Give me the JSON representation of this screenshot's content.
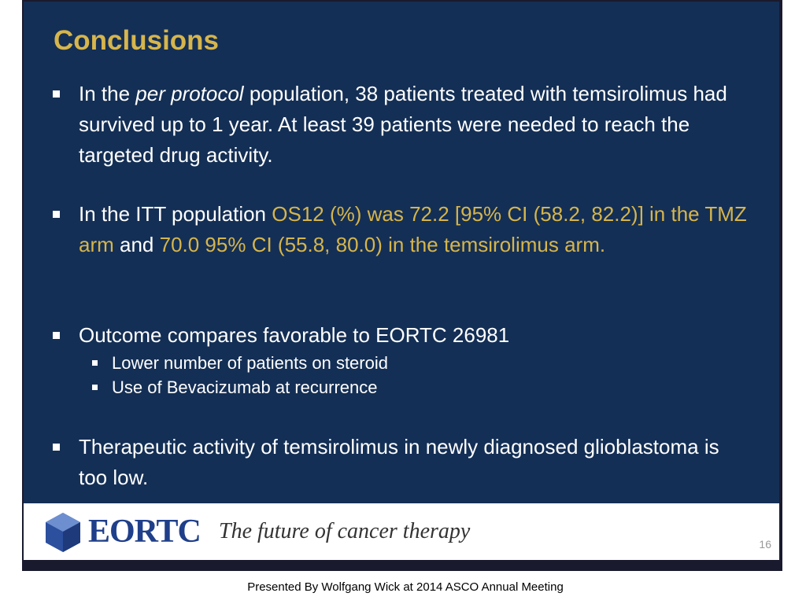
{
  "slide": {
    "title": "Conclusions",
    "bullets": [
      {
        "parts": [
          "In the ",
          "per protocol",
          " population, 38 patients treated with temsirolimus had survived up to 1 year. At least 39 patients were needed to reach the targeted drug activity."
        ]
      },
      {
        "parts": [
          "In the ITT population ",
          "OS12 (%) was 72.2 [95% CI (58.2, 82.2)] in the TMZ arm",
          " and ",
          "70.0 95% CI (55.8, 80.0) in the temsirolimus arm."
        ]
      },
      {
        "parts": [
          "Outcome compares favorable to EORTC 26981"
        ],
        "sub": [
          "Lower number of patients on steroid",
          "Use of Bevacizumab at recurrence"
        ]
      },
      {
        "parts": [
          "Therapeutic activity of temsirolimus in newly diagnosed glioblastoma is too low."
        ]
      }
    ],
    "footer": {
      "logo": "EORTC",
      "tagline": "The future of cancer therapy",
      "page": "16"
    }
  },
  "caption": "Presented By Wolfgang Wick at 2014 ASCO Annual Meeting"
}
